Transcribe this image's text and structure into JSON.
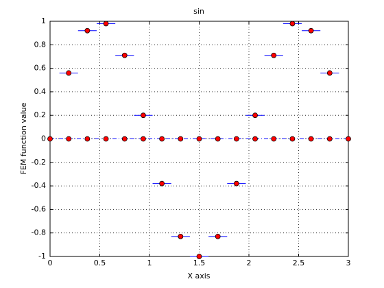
{
  "chart_data": {
    "type": "scatter",
    "title": "sin",
    "x_label": "X axis",
    "y_label": "FEM function value",
    "xlim": [
      0,
      3
    ],
    "ylim": [
      -1,
      1
    ],
    "xticks": [
      0,
      0.5,
      1,
      1.5,
      2,
      2.5,
      3
    ],
    "yticks": [
      -1,
      -0.8,
      -0.6,
      -0.4,
      -0.2,
      0,
      0.2,
      0.4,
      0.6,
      0.8,
      1
    ],
    "grid": true,
    "series": [
      {
        "color": "#ff0000",
        "line_color": "#0000ff",
        "style": "nodes",
        "x": [
          0,
          0.1875,
          0.375,
          0.5625,
          0.75,
          0.9375,
          1.125,
          1.3125,
          1.5,
          1.6875,
          1.875,
          2.0625,
          2.25,
          2.4375,
          2.625,
          2.8125,
          3
        ],
        "values": [
          0,
          0,
          0,
          0,
          0,
          0,
          0,
          0,
          0,
          0,
          0,
          0,
          0,
          0,
          0,
          0,
          0
        ]
      },
      {
        "color": "#ff0000",
        "line_color": "#0000ff",
        "style": "elements",
        "x": [
          0.1875,
          0.375,
          0.5625,
          0.75,
          0.9375,
          1.125,
          1.3125,
          1.5,
          1.6875,
          1.875,
          2.0625,
          2.25,
          2.4375,
          2.625,
          2.8125
        ],
        "values": [
          0.56,
          0.92,
          0.98,
          0.71,
          0.2,
          -0.38,
          -0.83,
          -1,
          -0.83,
          -0.38,
          0.2,
          0.71,
          0.98,
          0.92,
          0.56
        ]
      }
    ]
  }
}
